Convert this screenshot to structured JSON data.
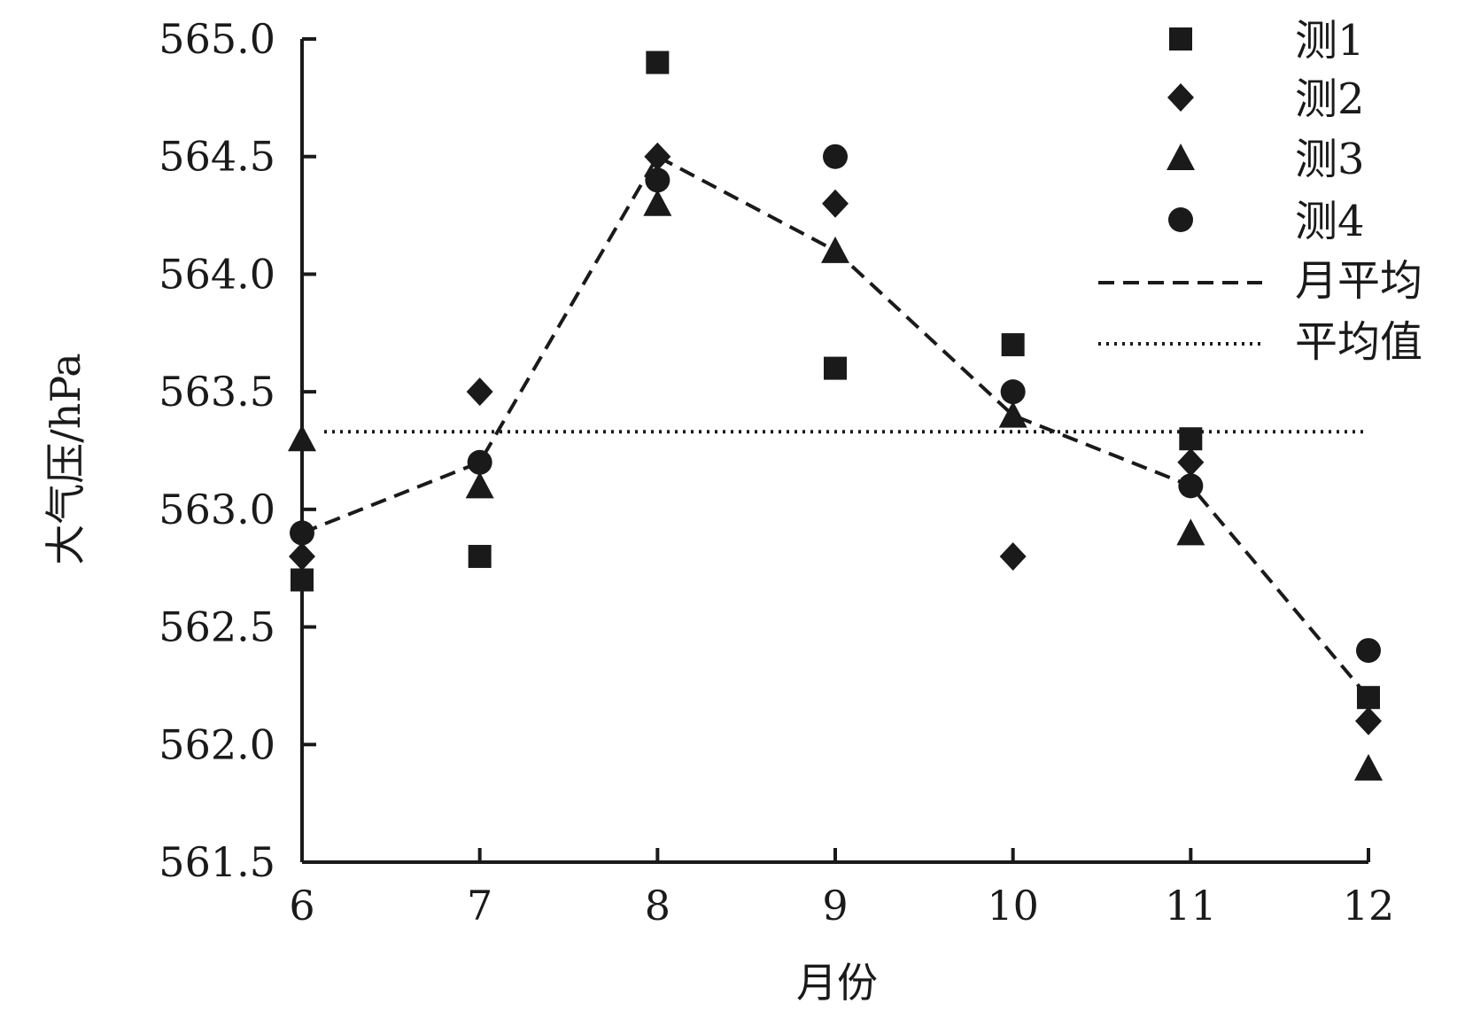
{
  "chart_data": {
    "type": "scatter",
    "title": "",
    "xlabel": "月份",
    "ylabel": "大气压/hPa",
    "xlim": [
      6,
      12
    ],
    "ylim": [
      561.5,
      565.0
    ],
    "x_ticks": [
      "6",
      "7",
      "8",
      "9",
      "10",
      "11",
      "12"
    ],
    "y_ticks": [
      "561.5",
      "562.0",
      "562.5",
      "563.0",
      "563.5",
      "564.0",
      "564.5",
      "565.0"
    ],
    "grid": false,
    "legend_position": "top-right",
    "x": [
      6,
      7,
      8,
      9,
      10,
      11,
      12
    ],
    "series": [
      {
        "name": "测1",
        "marker": "square",
        "values": [
          562.7,
          562.8,
          564.9,
          563.6,
          563.7,
          563.3,
          562.2
        ]
      },
      {
        "name": "测2",
        "marker": "diamond",
        "values": [
          562.8,
          563.5,
          564.5,
          564.3,
          562.8,
          563.2,
          562.1
        ]
      },
      {
        "name": "测3",
        "marker": "triangle",
        "values": [
          563.3,
          563.1,
          564.3,
          564.1,
          563.4,
          562.9,
          561.9
        ]
      },
      {
        "name": "测4",
        "marker": "circle",
        "values": [
          562.9,
          563.2,
          564.4,
          564.5,
          563.5,
          563.1,
          562.4
        ]
      },
      {
        "name": "月平均",
        "marker": "dashed-line",
        "values": [
          562.9,
          563.2,
          564.5,
          564.1,
          563.4,
          563.1,
          562.2
        ]
      },
      {
        "name": "平均值",
        "marker": "dotted-line",
        "values": [
          563.33,
          563.33,
          563.33,
          563.33,
          563.33,
          563.33,
          563.33
        ]
      }
    ],
    "colors": {
      "marks": "#1a1a1a",
      "background": "#ffffff"
    }
  }
}
